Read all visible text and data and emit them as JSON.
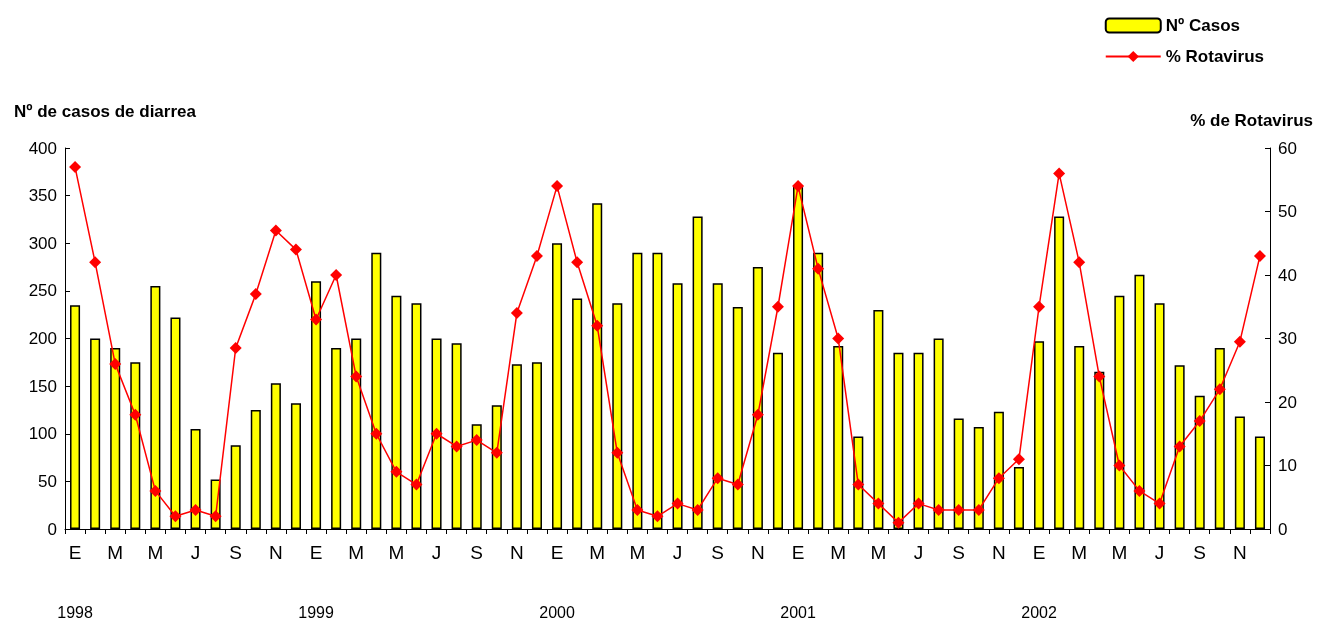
{
  "chart_data": {
    "type": "bar",
    "ylabel": "Nº de casos de diarrea",
    "y2label": "% de Rotavirus",
    "categories": [
      "E",
      null,
      "M",
      null,
      "M",
      null,
      "J",
      null,
      "S",
      null,
      "N",
      null,
      "E",
      null,
      "M",
      null,
      "M",
      null,
      "J",
      null,
      "S",
      null,
      "N",
      null,
      "E",
      null,
      "M",
      null,
      "M",
      null,
      "J",
      null,
      "S",
      null,
      "N",
      null,
      "E",
      null,
      "M",
      null,
      "M",
      null,
      "J",
      null,
      "S",
      null,
      "N",
      null,
      "E",
      null,
      "M",
      null,
      "M",
      null,
      "J",
      null,
      "S",
      null,
      "N",
      null
    ],
    "series": [
      {
        "name": "Nº Casos",
        "color": "#ffff00",
        "values": [
          235,
          200,
          190,
          175,
          255,
          222,
          105,
          52,
          88,
          125,
          153,
          132,
          260,
          190,
          200,
          290,
          245,
          237,
          200,
          195,
          110,
          130,
          173,
          175,
          300,
          242,
          342,
          237,
          290,
          290,
          258,
          328,
          258,
          233,
          275,
          185,
          360,
          290,
          192,
          97,
          230,
          185,
          185,
          200,
          116,
          107,
          123,
          65,
          197,
          328,
          192,
          165,
          245,
          267,
          237,
          172,
          140,
          190,
          118,
          97
        ]
      },
      {
        "name": "% Rotavirus",
        "type": "line",
        "axis": "y2",
        "color": "#ff0000",
        "values": [
          57,
          42,
          26,
          18,
          6,
          2,
          3,
          2,
          28.5,
          37,
          47,
          44,
          33,
          40,
          24,
          15,
          9,
          7,
          15,
          13,
          14,
          12,
          34,
          43,
          54,
          42,
          32,
          12,
          3,
          2,
          4,
          3,
          8,
          7,
          18,
          35,
          54,
          41,
          30,
          7,
          4,
          1,
          4,
          3,
          3,
          3,
          8,
          11,
          35,
          56,
          42,
          24,
          10,
          6,
          4,
          13,
          17,
          22,
          29.5,
          43
        ]
      }
    ],
    "ylim": [
      0,
      400
    ],
    "yticks": [
      0,
      50,
      100,
      150,
      200,
      250,
      300,
      350,
      400
    ],
    "y2lim": [
      0,
      60
    ],
    "y2ticks": [
      0,
      10,
      20,
      30,
      40,
      50,
      60
    ],
    "annotations": [
      "1998",
      "1999",
      "2000",
      "2001",
      "2002"
    ],
    "marker": "diamond",
    "grid": false,
    "legend": "top right"
  }
}
